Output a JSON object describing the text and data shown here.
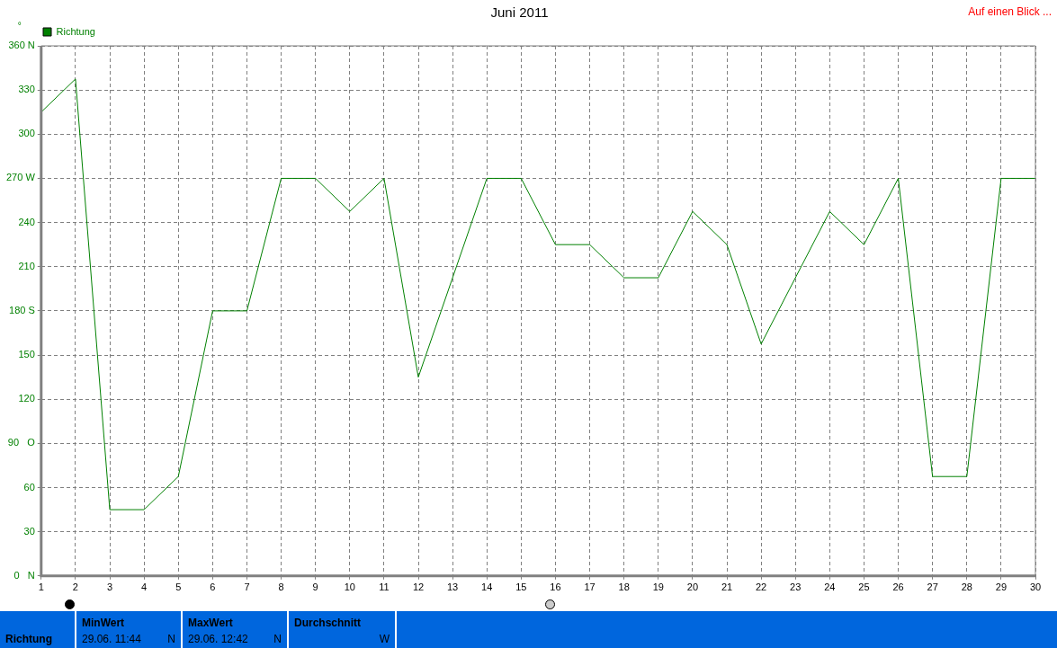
{
  "chart_data": {
    "type": "line",
    "title": "Juni 2011",
    "ylabel": "°",
    "x": [
      1,
      2,
      3,
      4,
      5,
      6,
      7,
      8,
      9,
      10,
      11,
      12,
      13,
      14,
      15,
      16,
      17,
      18,
      19,
      20,
      21,
      22,
      23,
      24,
      25,
      26,
      27,
      28,
      29,
      30
    ],
    "series": [
      {
        "name": "Richtung",
        "color": "#008000",
        "values": [
          315,
          337.5,
          45,
          45,
          67.5,
          180,
          180,
          270,
          270,
          247.5,
          270,
          135,
          202.5,
          270,
          270,
          225,
          225,
          202.5,
          202.5,
          247.5,
          225,
          157.5,
          202.5,
          247.5,
          225,
          270,
          67.5,
          67.5,
          270,
          270
        ]
      }
    ],
    "xlim": [
      1,
      30
    ],
    "xticks": [
      1,
      2,
      3,
      4,
      5,
      6,
      7,
      8,
      9,
      10,
      11,
      12,
      13,
      14,
      15,
      16,
      17,
      18,
      19,
      20,
      21,
      22,
      23,
      24,
      25,
      26,
      27,
      28,
      29,
      30
    ],
    "ylim": [
      0,
      360
    ],
    "yticks": [
      {
        "value": 0,
        "label": "0   N"
      },
      30,
      60,
      {
        "value": 90,
        "label": "90   O"
      },
      120,
      150,
      {
        "value": 180,
        "label": "180 S"
      },
      210,
      240,
      {
        "value": 270,
        "label": "270 W"
      },
      300,
      330,
      {
        "value": 360,
        "label": "360 N"
      }
    ],
    "grid": true,
    "legend": "top left",
    "marker": "none",
    "line_style": "solid",
    "annotations": [
      "Auf einen Blick ...",
      "Richtung",
      "MinWert",
      "29.06.  11:44",
      "N",
      "MaxWert",
      "29.06.  12:42",
      "N",
      "Durchschnitt",
      "W"
    ]
  }
}
